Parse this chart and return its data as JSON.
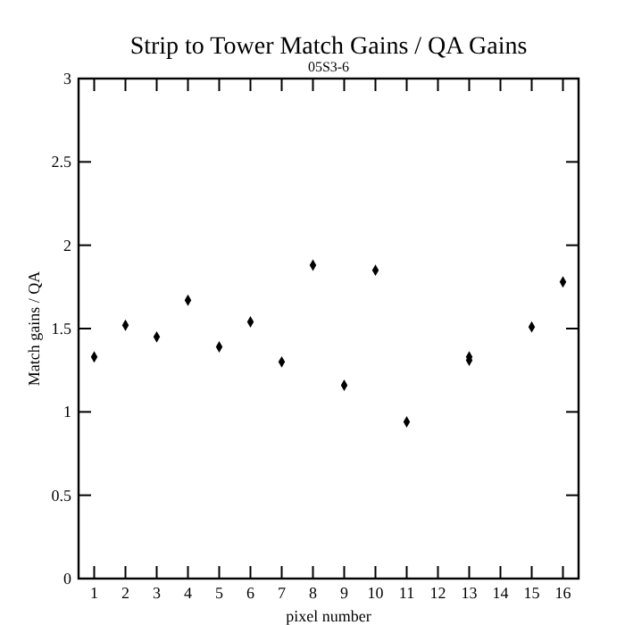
{
  "chart_data": {
    "type": "scatter",
    "title": "Strip to Tower Match Gains / QA Gains",
    "subtitle": "05S3-6",
    "xlabel": "pixel number",
    "ylabel": "Match gains / QA",
    "x": [
      1,
      2,
      3,
      4,
      5,
      6,
      7,
      8,
      9,
      10,
      11,
      13,
      13,
      15,
      16
    ],
    "values": [
      1.33,
      1.52,
      1.45,
      1.67,
      1.39,
      1.54,
      1.3,
      1.88,
      1.16,
      1.85,
      0.94,
      1.33,
      1.31,
      1.51,
      1.78
    ],
    "color": "#000000",
    "marker": "diamond",
    "xlim": [
      0.5,
      16.5
    ],
    "xticks": [
      1,
      2,
      3,
      4,
      5,
      6,
      7,
      8,
      9,
      10,
      11,
      12,
      13,
      14,
      15,
      16
    ],
    "ylim": [
      0,
      3
    ],
    "yticks": [
      0,
      0.5,
      1,
      1.5,
      2,
      2.5,
      3
    ],
    "grid": false
  }
}
